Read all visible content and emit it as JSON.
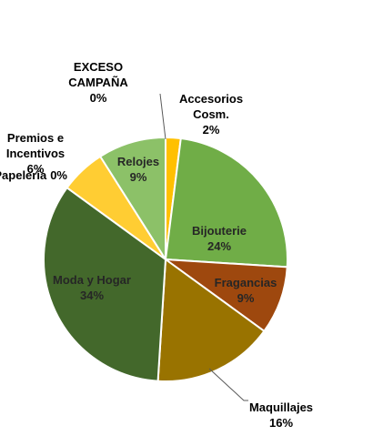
{
  "chart_data": {
    "type": "pie",
    "title": "",
    "slices": [
      {
        "label": "Accesorios Cosm.",
        "label_lines": [
          "Accesorios",
          "Cosm."
        ],
        "value": 2,
        "value_text": "2%",
        "color": "#FFC000"
      },
      {
        "label": "Bijouterie",
        "label_lines": [
          "Bijouterie"
        ],
        "value": 24,
        "value_text": "24%",
        "color": "#70AD47"
      },
      {
        "label": "Fragancias",
        "label_lines": [
          "Fragancias"
        ],
        "value": 9,
        "value_text": "9%",
        "color": "#9E480E"
      },
      {
        "label": "Maquillajes",
        "label_lines": [
          "Maquillajes"
        ],
        "value": 16,
        "value_text": "16%",
        "color": "#997300"
      },
      {
        "label": "Moda y Hogar",
        "label_lines": [
          "Moda y Hogar"
        ],
        "value": 34,
        "value_text": "34%",
        "color": "#43682B"
      },
      {
        "label": "Papelería",
        "label_lines": [
          "Papelería"
        ],
        "value": 0,
        "value_text": "0%",
        "color": "#FFC000"
      },
      {
        "label": "Premios e Incentivos",
        "label_lines": [
          "Premios e",
          "Incentivos"
        ],
        "value": 6,
        "value_text": "6%",
        "color": "#FFCD33"
      },
      {
        "label": "Relojes",
        "label_lines": [
          "Relojes"
        ],
        "value": 9,
        "value_text": "9%",
        "color": "#8CC168"
      },
      {
        "label": "EXCESO CAMPAÑA",
        "label_lines": [
          "EXCESO",
          "CAMPAÑA"
        ],
        "value": 0,
        "value_text": "0%",
        "color": "#A9D18E"
      }
    ]
  }
}
